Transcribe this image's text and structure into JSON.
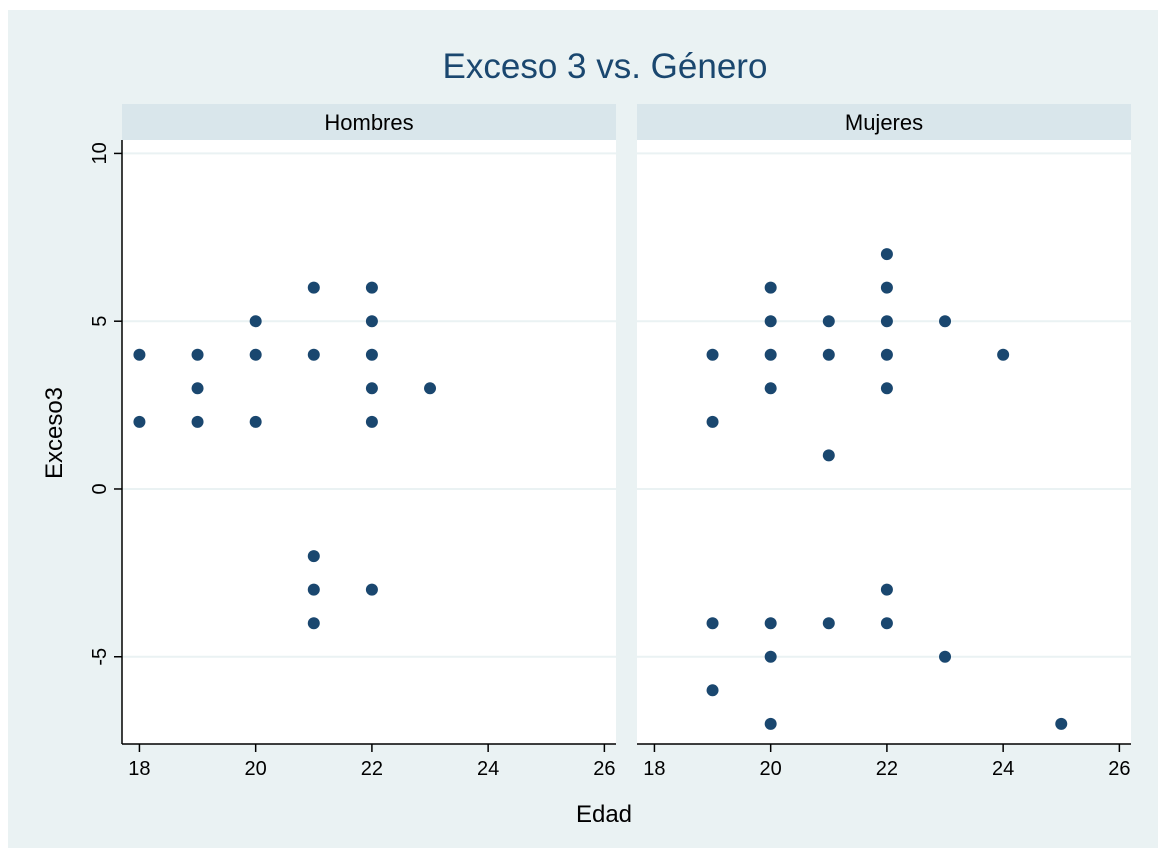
{
  "chart_data": {
    "type": "scatter",
    "title": "Exceso 3 vs. Género",
    "xlabel": "Edad",
    "ylabel": "Exceso3",
    "xlim": [
      17.7,
      26.2
    ],
    "ylim": [
      -7.6,
      10.4
    ],
    "xticks": [
      18,
      20,
      22,
      24,
      26
    ],
    "yticks": [
      -5,
      0,
      5,
      10
    ],
    "grid": true,
    "colors": {
      "outer_background": "#eaf2f3",
      "plot_background": "#ffffff",
      "strip_background": "#d9e6eb",
      "gridline": "#eaf2f3",
      "marker": "#1a476f",
      "title": "#1a476f"
    },
    "panels": [
      {
        "name": "Hombres",
        "points": [
          [
            18,
            4
          ],
          [
            18,
            2
          ],
          [
            19,
            4
          ],
          [
            19,
            3
          ],
          [
            19,
            2
          ],
          [
            20,
            5
          ],
          [
            20,
            4
          ],
          [
            20,
            2
          ],
          [
            21,
            6
          ],
          [
            21,
            4
          ],
          [
            21,
            -2
          ],
          [
            21,
            -3
          ],
          [
            21,
            -4
          ],
          [
            22,
            6
          ],
          [
            22,
            5
          ],
          [
            22,
            4
          ],
          [
            22,
            3
          ],
          [
            22,
            2
          ],
          [
            22,
            -3
          ],
          [
            23,
            3
          ]
        ]
      },
      {
        "name": "Mujeres",
        "points": [
          [
            19,
            4
          ],
          [
            19,
            2
          ],
          [
            19,
            -4
          ],
          [
            19,
            -6
          ],
          [
            20,
            6
          ],
          [
            20,
            5
          ],
          [
            20,
            4
          ],
          [
            20,
            3
          ],
          [
            20,
            -4
          ],
          [
            20,
            -5
          ],
          [
            20,
            -7
          ],
          [
            21,
            5
          ],
          [
            21,
            4
          ],
          [
            21,
            1
          ],
          [
            21,
            -4
          ],
          [
            22,
            7
          ],
          [
            22,
            6
          ],
          [
            22,
            5
          ],
          [
            22,
            4
          ],
          [
            22,
            3
          ],
          [
            22,
            -3
          ],
          [
            22,
            -4
          ],
          [
            23,
            5
          ],
          [
            23,
            -5
          ],
          [
            24,
            4
          ],
          [
            25,
            -7
          ]
        ]
      }
    ]
  }
}
